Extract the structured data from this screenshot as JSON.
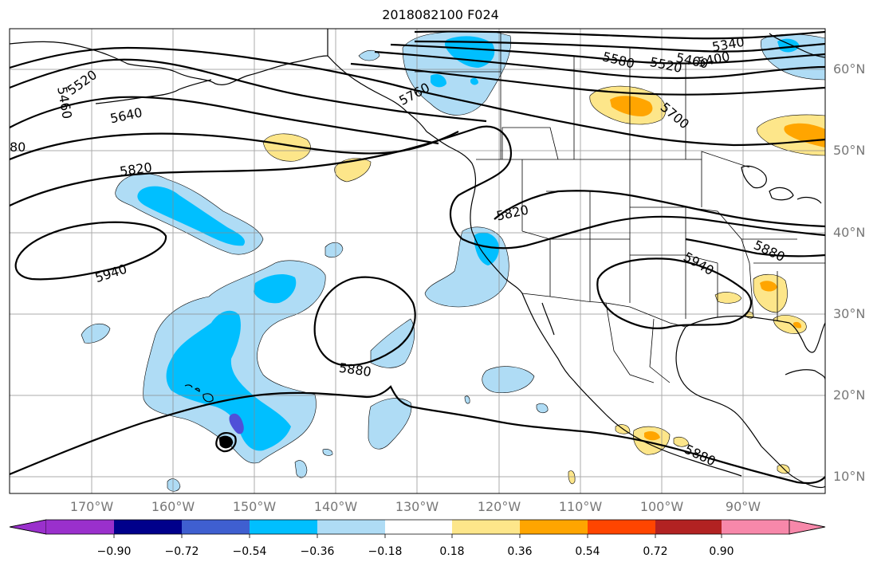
{
  "title": "2018082100 F024",
  "latitude_labels": [
    "60°N",
    "50°N",
    "40°N",
    "30°N",
    "20°N",
    "10°N"
  ],
  "longitude_labels": [
    "170°W",
    "160°W",
    "150°W",
    "140°W",
    "130°W",
    "120°W",
    "110°W",
    "100°W",
    "90°W"
  ],
  "contour_labels": [
    "5340",
    "5400",
    "5460",
    "5520",
    "5580",
    "5640",
    "5760",
    "5820",
    "5880",
    "5940",
    "5520",
    "5460",
    "80",
    "5700",
    "5820",
    "5880",
    "5940",
    "5880"
  ],
  "colorbar": {
    "tick_labels": [
      "−0.90",
      "−0.72",
      "−0.54",
      "−0.36",
      "−0.18",
      "0.18",
      "0.36",
      "0.54",
      "0.72",
      "0.90"
    ],
    "colors": [
      "#9a30cc",
      "#00008b",
      "#3f5fd0",
      "#00bfff",
      "#afdcf5",
      "#ffffff",
      "#fde68a",
      "#ffa500",
      "#ff4500",
      "#b22222",
      "#f788aa"
    ]
  },
  "fill_colors": {
    "light_blue": "#afdcf5",
    "blue": "#00bfff",
    "purple_blue": "#4f50d8",
    "light_yellow": "#fde68a",
    "orange": "#ffa500"
  }
}
